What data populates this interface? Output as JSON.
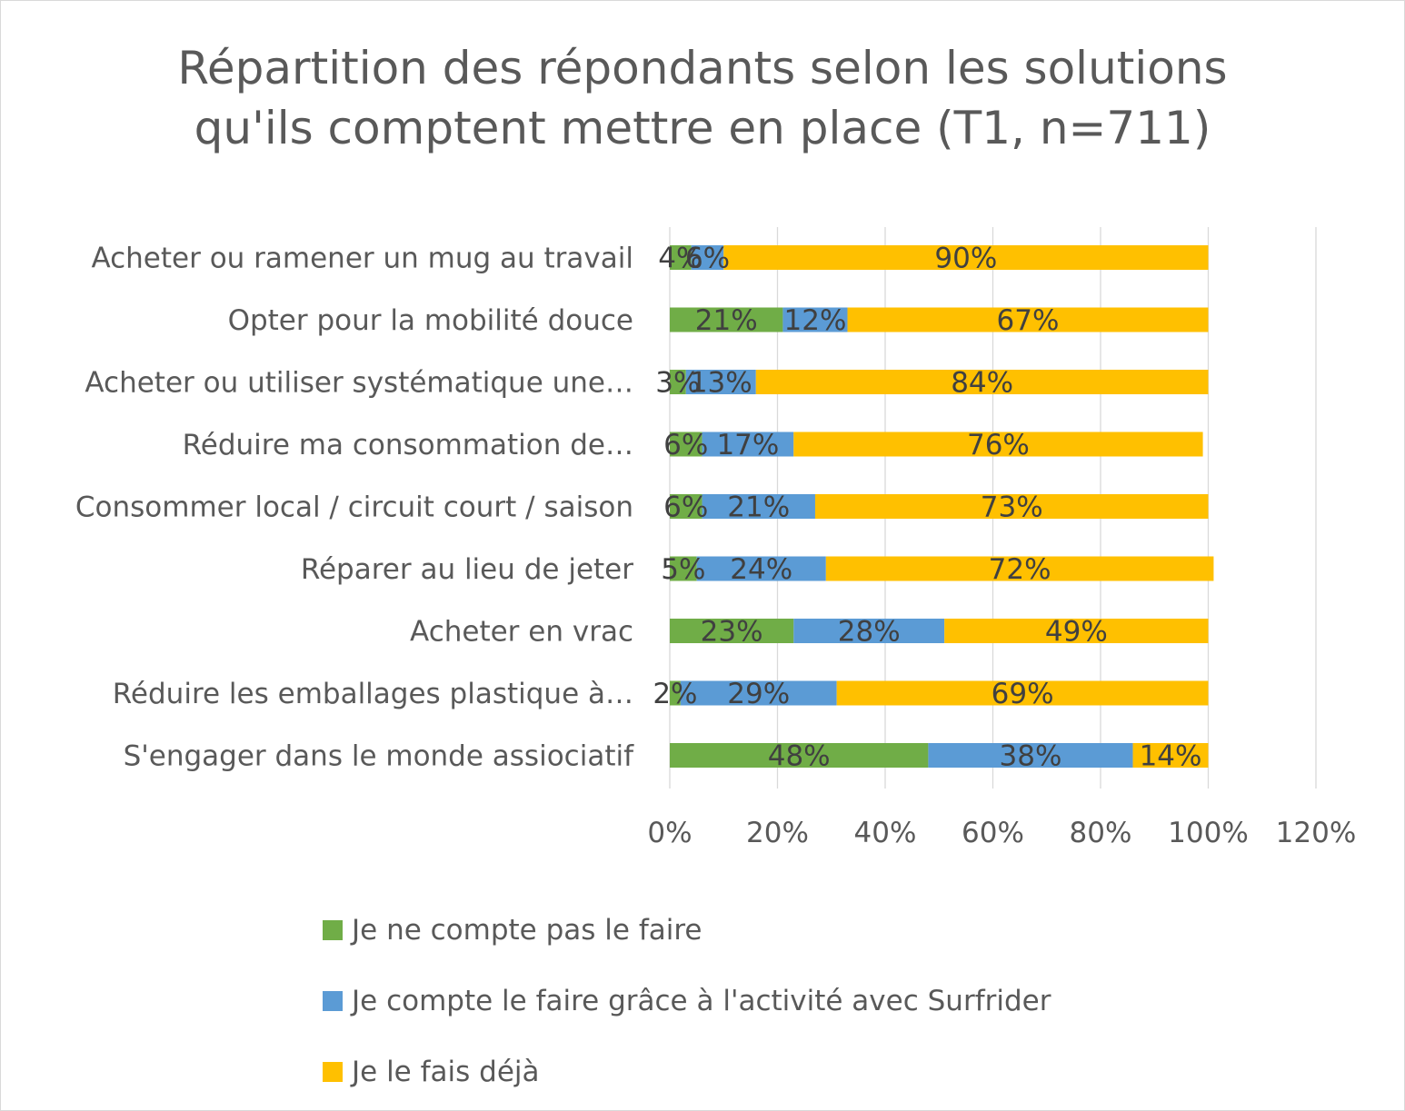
{
  "chart_data": {
    "type": "bar",
    "orientation": "horizontal",
    "stacked": true,
    "title_lines": [
      "Répartition des répondants selon les solutions",
      "qu'ils comptent mettre en place (T1, n=711)"
    ],
    "categories": [
      "Acheter ou ramener un mug au travail",
      "Opter pour la mobilité douce",
      "Acheter ou utiliser systématique une…",
      "Réduire ma consommation de…",
      "Consommer local / circuit court / saison",
      "Réparer au lieu de jeter",
      "Acheter en vrac",
      "Réduire les emballages plastique à…",
      "S'engager dans le monde assiociatif"
    ],
    "series": [
      {
        "name": "Je ne compte pas le faire",
        "color": "#70ad47",
        "values": [
          4,
          21,
          3,
          6,
          6,
          5,
          23,
          2,
          48
        ],
        "labels": [
          "4%",
          "21%",
          "3%",
          "6%",
          "6%",
          "5%",
          "23%",
          "2%",
          "48%"
        ]
      },
      {
        "name": "Je compte le faire grâce à l'activité avec Surfrider",
        "color": "#5b9bd5",
        "values": [
          6,
          12,
          13,
          17,
          21,
          24,
          28,
          29,
          38
        ],
        "labels": [
          "6%",
          "12%",
          "13%",
          "17%",
          "21%",
          "24%",
          "28%",
          "29%",
          "38%"
        ]
      },
      {
        "name": "Je le fais déjà",
        "color": "#ffc000",
        "values": [
          90,
          67,
          84,
          76,
          73,
          72,
          49,
          69,
          14
        ],
        "labels": [
          "90%",
          "67%",
          "84%",
          "76%",
          "73%",
          "72%",
          "49%",
          "69%",
          "14%"
        ]
      }
    ],
    "xlim": [
      0,
      120
    ],
    "xticks": [
      0,
      20,
      40,
      60,
      80,
      100,
      120
    ],
    "xtick_labels": [
      "0%",
      "20%",
      "40%",
      "60%",
      "80%",
      "100%",
      "120%"
    ],
    "grid": true,
    "legend_position": "bottom"
  }
}
